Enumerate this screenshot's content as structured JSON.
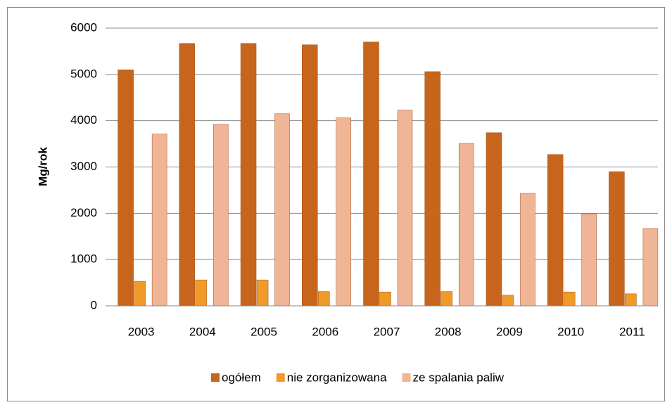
{
  "chart_data": {
    "type": "bar",
    "y_label": "Mg/rok",
    "categories": [
      "2003",
      "2004",
      "2005",
      "2006",
      "2007",
      "2008",
      "2009",
      "2010",
      "2011"
    ],
    "series": [
      {
        "name": "ogółem",
        "color": "#c8651d",
        "values": [
          5100,
          5670,
          5670,
          5640,
          5700,
          5060,
          3740,
          3270,
          2900
        ]
      },
      {
        "name": "nie zorganizowana",
        "color": "#f09a2a",
        "values": [
          530,
          560,
          560,
          310,
          300,
          310,
          230,
          300,
          260
        ]
      },
      {
        "name": "ze spalania paliw",
        "color": "#f0b496",
        "values": [
          3710,
          3920,
          4150,
          4060,
          4230,
          3510,
          2430,
          1990,
          1670
        ]
      }
    ],
    "ylim": [
      0,
      6000
    ],
    "yticks": [
      0,
      1000,
      2000,
      3000,
      4000,
      5000,
      6000
    ],
    "grid": true,
    "legend": "bottom"
  }
}
